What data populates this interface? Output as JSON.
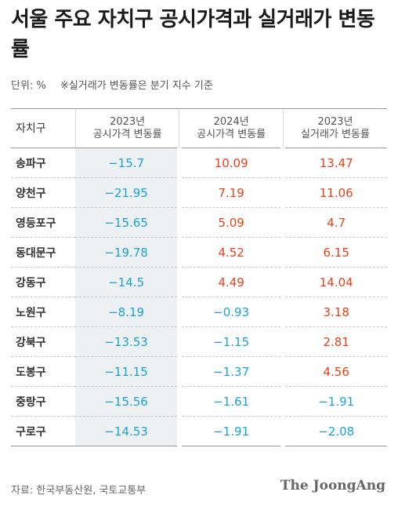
{
  "title": "서울 주요 자치구 공시가격과 실거래가 변동률",
  "unit": "단위: %",
  "note": "※실거래가 변동률은 분기 지수 기준",
  "table": {
    "header_first": "자치구",
    "columns": [
      {
        "year": "2023년",
        "label": "공시가격 변동률"
      },
      {
        "year": "2024년",
        "label": "공시가격 변동률"
      },
      {
        "year": "2023년",
        "label": "실거래가 변동률"
      }
    ],
    "rows": [
      {
        "name": "송파구",
        "v": [
          "−15.7",
          "10.09",
          "13.47"
        ],
        "sign": [
          "neg",
          "pos",
          "pos"
        ]
      },
      {
        "name": "양천구",
        "v": [
          "−21.95",
          "7.19",
          "11.06"
        ],
        "sign": [
          "neg",
          "pos",
          "pos"
        ]
      },
      {
        "name": "영등포구",
        "v": [
          "−15.65",
          "5.09",
          "4.7"
        ],
        "sign": [
          "neg",
          "pos",
          "pos"
        ]
      },
      {
        "name": "동대문구",
        "v": [
          "−19.78",
          "4.52",
          "6.15"
        ],
        "sign": [
          "neg",
          "pos",
          "pos"
        ]
      },
      {
        "name": "강동구",
        "v": [
          "−14.5",
          "4.49",
          "14.04"
        ],
        "sign": [
          "neg",
          "pos",
          "pos"
        ]
      },
      {
        "name": "노원구",
        "v": [
          "−8.19",
          "−0.93",
          "3.18"
        ],
        "sign": [
          "neg",
          "neg",
          "pos"
        ]
      },
      {
        "name": "강북구",
        "v": [
          "−13.53",
          "−1.15",
          "2.81"
        ],
        "sign": [
          "neg",
          "neg",
          "pos"
        ]
      },
      {
        "name": "도봉구",
        "v": [
          "−11.15",
          "−1.37",
          "4.56"
        ],
        "sign": [
          "neg",
          "neg",
          "pos"
        ]
      },
      {
        "name": "중랑구",
        "v": [
          "−15.56",
          "−1.61",
          "−1.91"
        ],
        "sign": [
          "neg",
          "neg",
          "neg"
        ]
      },
      {
        "name": "구로구",
        "v": [
          "−14.53",
          "−1.91",
          "−2.08"
        ],
        "sign": [
          "neg",
          "neg",
          "neg"
        ]
      }
    ]
  },
  "colors": {
    "positive": "#e8411a",
    "negative": "#1aa3d9",
    "shaded_column": "#eef1f4"
  },
  "footer": {
    "source": "자료: 한국부동산원, 국토교통부",
    "logo": "The JoongAng"
  }
}
